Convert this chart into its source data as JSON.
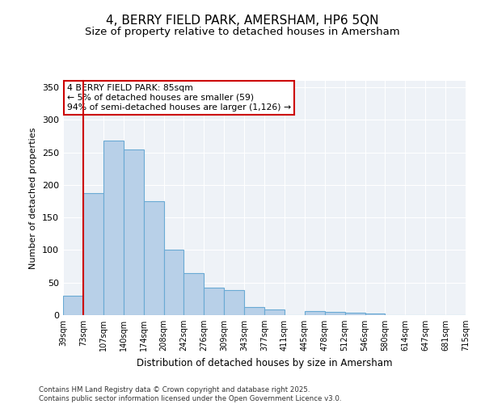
{
  "title_line1": "4, BERRY FIELD PARK, AMERSHAM, HP6 5QN",
  "title_line2": "Size of property relative to detached houses in Amersham",
  "xlabel": "Distribution of detached houses by size in Amersham",
  "ylabel": "Number of detached properties",
  "bin_labels": [
    "39sqm",
    "73sqm",
    "107sqm",
    "140sqm",
    "174sqm",
    "208sqm",
    "242sqm",
    "276sqm",
    "309sqm",
    "343sqm",
    "377sqm",
    "411sqm",
    "445sqm",
    "478sqm",
    "512sqm",
    "546sqm",
    "580sqm",
    "614sqm",
    "647sqm",
    "681sqm",
    "715sqm"
  ],
  "bar_color": "#b8d0e8",
  "bar_edge_color": "#6aaad4",
  "vline_color": "#cc0000",
  "annotation_line1": "4 BERRY FIELD PARK: 85sqm",
  "annotation_line2": "← 5% of detached houses are smaller (59)",
  "annotation_line3": "94% of semi-detached houses are larger (1,126) →",
  "annotation_box_color": "#cc0000",
  "ylim": [
    0,
    360
  ],
  "yticks": [
    0,
    50,
    100,
    150,
    200,
    250,
    300,
    350
  ],
  "background_color": "#eef2f7",
  "grid_color": "#ffffff",
  "footer_text": "Contains HM Land Registry data © Crown copyright and database right 2025.\nContains public sector information licensed under the Open Government Licence v3.0.",
  "title_fontsize": 11,
  "subtitle_fontsize": 10,
  "num_bars": 20,
  "bar_heights": [
    30,
    187,
    268,
    255,
    175,
    100,
    65,
    42,
    38,
    13,
    9,
    0,
    6,
    5,
    4,
    2,
    0,
    0,
    0,
    0
  ],
  "vline_x_bin": 1
}
